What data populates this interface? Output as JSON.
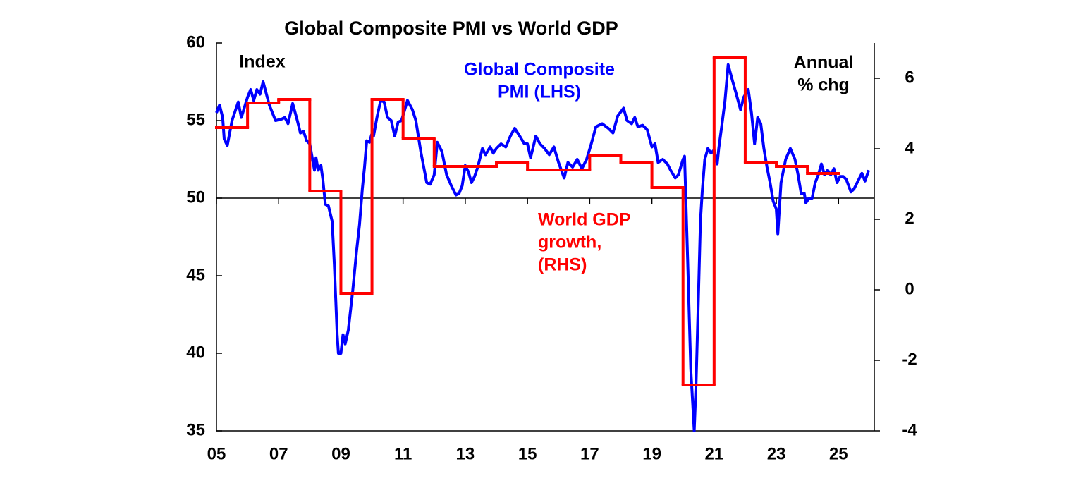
{
  "chart_data": {
    "type": "line",
    "title": "Global Composite PMI vs World GDP",
    "annotations": [
      {
        "lines": [
          "Index"
        ],
        "color": "#000000"
      },
      {
        "lines": [
          "Global Composite",
          "PMI (LHS)"
        ],
        "color": "#0000ff"
      },
      {
        "lines": [
          "World GDP",
          "growth,",
          "(RHS)"
        ],
        "color": "#ff0000"
      },
      {
        "lines": [
          "Annual",
          "% chg"
        ],
        "color": "#000000"
      }
    ],
    "xlim": [
      2005,
      2026.15
    ],
    "xticks": [
      {
        "value": 2005,
        "label": "05"
      },
      {
        "value": 2007,
        "label": "07"
      },
      {
        "value": 2009,
        "label": "09"
      },
      {
        "value": 2011,
        "label": "11"
      },
      {
        "value": 2013,
        "label": "13"
      },
      {
        "value": 2015,
        "label": "15"
      },
      {
        "value": 2017,
        "label": "17"
      },
      {
        "value": 2019,
        "label": "19"
      },
      {
        "value": 2021,
        "label": "21"
      },
      {
        "value": 2023,
        "label": "23"
      },
      {
        "value": 2025,
        "label": "25"
      }
    ],
    "ylim": [
      35,
      60
    ],
    "yticks": [
      35,
      40,
      45,
      50,
      55,
      60
    ],
    "y2lim": [
      -4,
      7
    ],
    "y2ticks": [
      -4,
      -2,
      0,
      2,
      4,
      6
    ],
    "x_axis_at": 50,
    "series": [
      {
        "color": "#0000ff",
        "axis": "y",
        "style": "line",
        "x": [
          2005.0,
          2005.1,
          2005.2,
          2005.25,
          2005.35,
          2005.5,
          2005.7,
          2005.8,
          2006.0,
          2006.1,
          2006.2,
          2006.3,
          2006.4,
          2006.5,
          2006.7,
          2006.9,
          2007.1,
          2007.2,
          2007.3,
          2007.45,
          2007.6,
          2007.7,
          2007.8,
          2007.9,
          2008.0,
          2008.15,
          2008.2,
          2008.27,
          2008.36,
          2008.42,
          2008.5,
          2008.6,
          2008.72,
          2008.79,
          2008.88,
          2008.92,
          2009.0,
          2009.07,
          2009.14,
          2009.24,
          2009.38,
          2009.5,
          2009.6,
          2009.69,
          2009.76,
          2009.83,
          2009.92,
          2009.99,
          2010.05,
          2010.16,
          2010.28,
          2010.39,
          2010.5,
          2010.62,
          2010.73,
          2010.84,
          2010.95,
          2011.14,
          2011.3,
          2011.41,
          2011.57,
          2011.76,
          2011.87,
          2012.0,
          2012.1,
          2012.25,
          2012.4,
          2012.55,
          2012.7,
          2012.8,
          2012.9,
          2013.0,
          2013.1,
          2013.2,
          2013.3,
          2013.4,
          2013.55,
          2013.65,
          2013.8,
          2013.9,
          2014.0,
          2014.15,
          2014.3,
          2014.45,
          2014.59,
          2014.75,
          2014.9,
          2015.0,
          2015.1,
          2015.27,
          2015.4,
          2015.55,
          2015.7,
          2015.85,
          2016.0,
          2016.18,
          2016.3,
          2016.45,
          2016.6,
          2016.75,
          2016.9,
          2017.05,
          2017.2,
          2017.4,
          2017.6,
          2017.75,
          2017.9,
          2018.09,
          2018.2,
          2018.35,
          2018.45,
          2018.55,
          2018.7,
          2018.85,
          2019.0,
          2019.1,
          2019.2,
          2019.35,
          2019.5,
          2019.6,
          2019.75,
          2019.85,
          2020.0,
          2020.05,
          2020.15,
          2020.25,
          2020.36,
          2020.42,
          2020.5,
          2020.56,
          2020.62,
          2020.7,
          2020.8,
          2020.9,
          2021.0,
          2021.1,
          2021.15,
          2021.25,
          2021.35,
          2021.45,
          2021.6,
          2021.7,
          2021.85,
          2021.95,
          2022.1,
          2022.2,
          2022.3,
          2022.4,
          2022.5,
          2022.6,
          2022.7,
          2022.8,
          2022.9,
          2023.0,
          2023.05,
          2023.15,
          2023.3,
          2023.45,
          2023.6,
          2023.7,
          2023.8,
          2023.9,
          2023.95,
          2024.05,
          2024.15,
          2024.25,
          2024.35,
          2024.45,
          2024.55,
          2024.65,
          2024.75,
          2024.85,
          2024.95,
          2025.05,
          2025.15,
          2025.25,
          2025.4,
          2025.5,
          2025.6,
          2025.75,
          2025.85,
          2025.97
        ],
        "values": [
          55.5,
          56,
          55.2,
          53.8,
          53.4,
          55,
          56.2,
          55.2,
          56.5,
          57,
          56.3,
          57,
          56.7,
          57.5,
          56,
          55,
          55.1,
          55.2,
          54.8,
          56.1,
          55,
          54.2,
          54.3,
          53.7,
          53.5,
          51.8,
          52.6,
          51.8,
          52.1,
          51.2,
          49.6,
          49.5,
          48.5,
          45.7,
          41.2,
          40,
          40,
          41.2,
          40.6,
          41.5,
          44,
          46.5,
          48.3,
          50.6,
          52,
          53.7,
          53.6,
          54.1,
          54,
          55.2,
          56.3,
          56.2,
          55.2,
          55,
          54,
          54.9,
          55,
          56.3,
          55.7,
          55,
          53,
          51,
          50.9,
          51.5,
          53.6,
          53,
          51.5,
          50.8,
          50.2,
          50.3,
          50.8,
          52.1,
          51.7,
          51,
          51.4,
          52,
          53.2,
          52.8,
          53.3,
          52.9,
          53.2,
          53.5,
          53.3,
          54,
          54.5,
          54,
          53.5,
          53.5,
          52.6,
          54,
          53.5,
          53.2,
          52.8,
          53.3,
          52.3,
          51.3,
          52.3,
          52,
          52.5,
          51.9,
          52.5,
          53.5,
          54.6,
          54.8,
          54.5,
          54.2,
          55.3,
          55.8,
          55,
          54.8,
          55.2,
          54.6,
          54.7,
          54.4,
          53.3,
          53.5,
          52.3,
          52.5,
          52.2,
          51.8,
          51.3,
          51.5,
          52.5,
          52.7,
          46,
          39,
          35,
          38,
          44,
          48.5,
          50.5,
          52.5,
          53.2,
          52.9,
          53.1,
          52.2,
          53.2,
          54.7,
          56.3,
          58.6,
          57.5,
          56.8,
          55.7,
          56.5,
          57,
          55.5,
          53.5,
          55.2,
          54.8,
          53.2,
          52,
          51,
          49.8,
          49.3,
          47.7,
          51,
          52.5,
          53.2,
          52.5,
          51.5,
          50.3,
          50.3,
          49.7,
          50,
          50,
          51,
          51.5,
          52.2,
          51.5,
          51.8,
          51.5,
          51.9,
          51,
          51.4,
          51.4,
          51.2,
          50.4,
          50.6,
          51,
          51.6,
          51.1,
          51.8
        ]
      },
      {
        "color": "#ff0000",
        "axis": "y2",
        "style": "step",
        "x": [
          2005,
          2006,
          2007,
          2008,
          2009,
          2010,
          2011,
          2012,
          2013,
          2014,
          2015,
          2016,
          2017,
          2018,
          2019,
          2020,
          2021,
          2022,
          2023,
          2024
        ],
        "values": [
          4.6,
          5.3,
          5.4,
          2.8,
          -0.1,
          5.4,
          4.3,
          3.5,
          3.5,
          3.6,
          3.4,
          3.4,
          3.8,
          3.6,
          2.9,
          -2.7,
          6.6,
          3.6,
          3.5,
          3.3
        ]
      }
    ]
  }
}
